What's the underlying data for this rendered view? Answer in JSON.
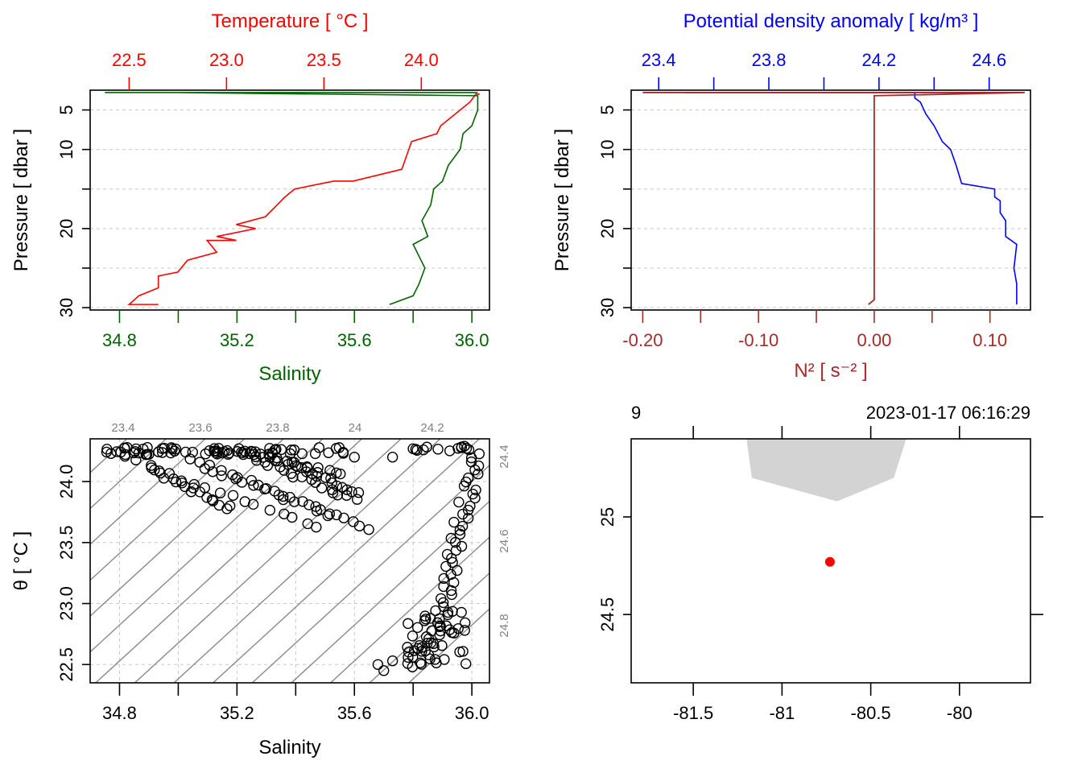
{
  "chart_data": [
    {
      "panel": "temperature-salinity-profile",
      "type": "line",
      "top_axis": {
        "title": "Temperature [ °C ]",
        "color": "#ff0000",
        "range": [
          22.3,
          24.35
        ],
        "ticks": [
          22.5,
          23.0,
          23.5,
          24.0
        ],
        "tick_labels": [
          "22.5",
          "23.0",
          "23.5",
          "24.0"
        ]
      },
      "bottom_axis": {
        "title": "Salinity",
        "color": "#006400",
        "range": [
          34.7,
          36.06
        ],
        "ticks": [
          34.8,
          35.0,
          35.2,
          35.4,
          35.6,
          35.8,
          36.0
        ],
        "tick_labels": [
          "34.8",
          "",
          "35.2",
          "",
          "35.6",
          "",
          "36.0"
        ]
      },
      "y_axis": {
        "title": "Pressure [ dbar ]",
        "range": [
          30.3,
          2.5
        ],
        "ticks": [
          5,
          10,
          15,
          20,
          25,
          30
        ],
        "tick_labels": [
          "5",
          "10",
          "",
          "20",
          "",
          "30"
        ]
      },
      "series": [
        {
          "name": "Temperature",
          "color": "#ff0000",
          "x": [
            22.65,
            22.5,
            22.55,
            22.65,
            22.65,
            22.75,
            22.8,
            22.95,
            22.9,
            23.05,
            22.95,
            23.15,
            23.05,
            23.2,
            23.3,
            23.35,
            23.55,
            23.65,
            23.9,
            23.95,
            24.08,
            24.1,
            24.25,
            24.28,
            24.3
          ],
          "y": [
            29.6,
            29.6,
            28.5,
            27.5,
            26,
            25.5,
            24,
            23,
            21.5,
            21.5,
            21,
            20,
            19.5,
            18.5,
            16,
            15,
            14,
            14,
            12.5,
            9,
            8,
            7,
            4,
            3,
            3
          ]
        },
        {
          "name": "Salinity",
          "color": "#006400",
          "x": [
            35.72,
            35.8,
            35.82,
            35.84,
            35.8,
            35.85,
            35.83,
            35.86,
            35.87,
            35.9,
            35.92,
            35.96,
            35.97,
            36.0,
            36.02,
            36.02,
            35.0,
            34.75,
            36.02
          ],
          "y": [
            29.6,
            28.5,
            27,
            25,
            22,
            21,
            19,
            17,
            15,
            14,
            12,
            10,
            8,
            7,
            5,
            3.2,
            2.8,
            2.8,
            2.8
          ]
        }
      ]
    },
    {
      "panel": "density-n2-profile",
      "type": "line",
      "top_axis": {
        "title": "Potential density anomaly [ kg/m³ ]",
        "color": "#0000ff",
        "range": [
          23.3,
          24.75
        ],
        "ticks": [
          23.4,
          23.6,
          23.8,
          24.0,
          24.2,
          24.4,
          24.6
        ],
        "tick_labels": [
          "23.4",
          "",
          "23.8",
          "",
          "24.2",
          "",
          "24.6"
        ]
      },
      "bottom_axis": {
        "title": "N² [ s⁻² ]",
        "color": "#a52a2a",
        "range": [
          -0.21,
          0.135
        ],
        "ticks": [
          -0.2,
          -0.15,
          -0.1,
          -0.05,
          0.0,
          0.05,
          0.1
        ],
        "tick_labels": [
          "-0.20",
          "",
          "-0.10",
          "",
          "0.00",
          "",
          "0.10"
        ]
      },
      "y_axis": {
        "title": "Pressure [ dbar ]",
        "range": [
          30.3,
          2.5
        ],
        "ticks": [
          5,
          10,
          15,
          20,
          25,
          30
        ],
        "tick_labels": [
          "5",
          "10",
          "",
          "20",
          "",
          "30"
        ]
      },
      "series": [
        {
          "name": "Potential density anomaly",
          "color": "#0000ff",
          "x": [
            24.7,
            24.7,
            24.69,
            24.7,
            24.66,
            24.66,
            24.64,
            24.64,
            24.62,
            24.62,
            24.5,
            24.48,
            24.46,
            24.43,
            24.4,
            24.37,
            24.35,
            24.33,
            24.33,
            23.5,
            24.33
          ],
          "y": [
            29.6,
            27,
            25,
            22,
            21,
            19,
            18,
            16.5,
            16,
            15,
            14.3,
            12,
            10,
            9,
            7,
            5.5,
            4,
            3.5,
            2.8,
            2.8,
            2.8
          ]
        },
        {
          "name": "N2",
          "color": "#a52a2a",
          "x": [
            -0.005,
            0.0,
            0.0,
            0.0,
            0.0,
            0.0,
            0.0,
            0.13,
            -0.2,
            0.0
          ],
          "y": [
            29.6,
            29,
            25,
            20,
            10,
            5,
            3.2,
            2.8,
            2.8,
            2.8
          ]
        }
      ]
    },
    {
      "panel": "ts-diagram",
      "type": "scatter",
      "x_axis": {
        "title": "Salinity",
        "range": [
          34.7,
          36.06
        ],
        "ticks": [
          34.8,
          35.0,
          35.2,
          35.4,
          35.6,
          35.8,
          36.0
        ],
        "tick_labels": [
          "34.8",
          "",
          "35.2",
          "",
          "35.6",
          "",
          "36.0"
        ]
      },
      "y_axis": {
        "title": "θ [ °C ]",
        "range": [
          22.35,
          24.35
        ],
        "ticks": [
          22.5,
          23.0,
          23.5,
          24.0
        ],
        "tick_labels": [
          "22.5",
          "23.0",
          "23.5",
          "24.0"
        ]
      },
      "isopycnal_labels_top": [
        "23.4",
        "23.6",
        "23.8",
        "24",
        "24.2"
      ],
      "isopycnal_labels_right": [
        "24.4",
        "24.6",
        "24.8"
      ],
      "isopycnal_values": [
        23.2,
        23.3,
        23.4,
        23.5,
        23.6,
        23.7,
        23.8,
        23.9,
        24.0,
        24.1,
        24.2,
        24.3,
        24.4,
        24.5,
        24.6,
        24.7,
        24.8,
        24.9
      ],
      "points_summary": "dense clusters: upper-left fan S 34.75–35.66, θ 23.6–24.28; right column S 35.7–36.03, θ 22.45–24.28",
      "outline_color": "#000000"
    },
    {
      "panel": "station-map",
      "type": "scatter",
      "x_axis": {
        "range": [
          -81.85,
          -79.6
        ],
        "ticks": [
          -81.5,
          -81.0,
          -80.5,
          -80.0
        ],
        "tick_labels": [
          "-81.5",
          "-81",
          "-80.5",
          "-80"
        ]
      },
      "y_axis": {
        "range": [
          24.15,
          25.4
        ],
        "ticks": [
          24.5,
          25.0
        ],
        "tick_labels": [
          "24.5",
          "25"
        ]
      },
      "station": {
        "lon": -80.73,
        "lat": 24.77,
        "color": "#ff0000"
      },
      "land_polygon": {
        "lon": [
          -81.2,
          -80.3,
          -80.37,
          -80.69,
          -81.17
        ],
        "lat": [
          25.4,
          25.4,
          25.2,
          25.08,
          25.2
        ],
        "color": "#d3d3d3"
      },
      "station_label": "9",
      "time_label": "2023-01-17 06:16:29"
    }
  ]
}
